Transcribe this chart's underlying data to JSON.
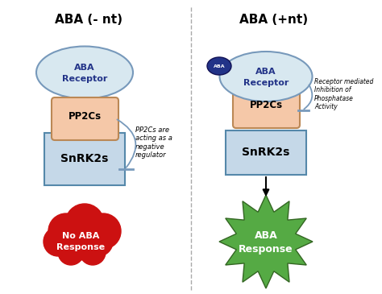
{
  "title_left": "ABA (- nt)",
  "title_right": "ABA (+nt)",
  "bg_color": "#ffffff",
  "receptor_face": "#d8e8f0",
  "receptor_edge": "#7799bb",
  "pp2cs_face": "#f5c8a8",
  "pp2cs_edge": "#bb8855",
  "snrk2s_face": "#c5d8e8",
  "snrk2s_edge": "#5588aa",
  "no_aba_color": "#cc1111",
  "aba_response_color": "#55aa44",
  "aba_mol_color": "#223388",
  "curve_color": "#7799bb",
  "note_left": "PP2Cs are\nacting as a\nnegative\nregulator",
  "note_right": "Receptor mediated\nInhibition of\nPhosphatase\nActivity"
}
